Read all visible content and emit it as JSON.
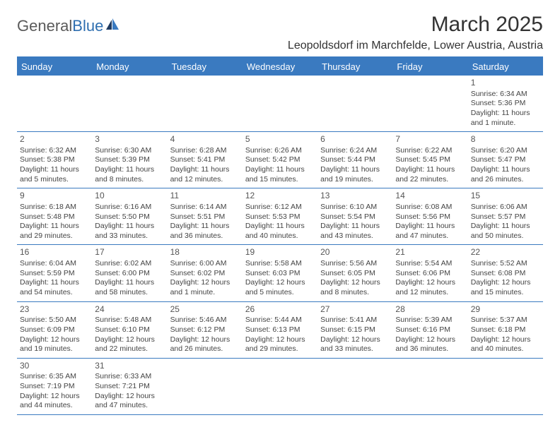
{
  "logo": {
    "part1": "General",
    "part2": "Blue"
  },
  "title": "March 2025",
  "location": "Leopoldsdorf im Marchfelde, Lower Austria, Austria",
  "colors": {
    "header_bg": "#3a7ac0",
    "header_text": "#ffffff",
    "rule": "#3a7ac0",
    "text": "#444444",
    "logo_gray": "#5a5a5a",
    "logo_blue": "#2f6fb0"
  },
  "weekdays": [
    "Sunday",
    "Monday",
    "Tuesday",
    "Wednesday",
    "Thursday",
    "Friday",
    "Saturday"
  ],
  "weeks": [
    [
      null,
      null,
      null,
      null,
      null,
      null,
      {
        "n": "1",
        "sr": "Sunrise: 6:34 AM",
        "ss": "Sunset: 5:36 PM",
        "dl": "Daylight: 11 hours and 1 minute."
      }
    ],
    [
      {
        "n": "2",
        "sr": "Sunrise: 6:32 AM",
        "ss": "Sunset: 5:38 PM",
        "dl": "Daylight: 11 hours and 5 minutes."
      },
      {
        "n": "3",
        "sr": "Sunrise: 6:30 AM",
        "ss": "Sunset: 5:39 PM",
        "dl": "Daylight: 11 hours and 8 minutes."
      },
      {
        "n": "4",
        "sr": "Sunrise: 6:28 AM",
        "ss": "Sunset: 5:41 PM",
        "dl": "Daylight: 11 hours and 12 minutes."
      },
      {
        "n": "5",
        "sr": "Sunrise: 6:26 AM",
        "ss": "Sunset: 5:42 PM",
        "dl": "Daylight: 11 hours and 15 minutes."
      },
      {
        "n": "6",
        "sr": "Sunrise: 6:24 AM",
        "ss": "Sunset: 5:44 PM",
        "dl": "Daylight: 11 hours and 19 minutes."
      },
      {
        "n": "7",
        "sr": "Sunrise: 6:22 AM",
        "ss": "Sunset: 5:45 PM",
        "dl": "Daylight: 11 hours and 22 minutes."
      },
      {
        "n": "8",
        "sr": "Sunrise: 6:20 AM",
        "ss": "Sunset: 5:47 PM",
        "dl": "Daylight: 11 hours and 26 minutes."
      }
    ],
    [
      {
        "n": "9",
        "sr": "Sunrise: 6:18 AM",
        "ss": "Sunset: 5:48 PM",
        "dl": "Daylight: 11 hours and 29 minutes."
      },
      {
        "n": "10",
        "sr": "Sunrise: 6:16 AM",
        "ss": "Sunset: 5:50 PM",
        "dl": "Daylight: 11 hours and 33 minutes."
      },
      {
        "n": "11",
        "sr": "Sunrise: 6:14 AM",
        "ss": "Sunset: 5:51 PM",
        "dl": "Daylight: 11 hours and 36 minutes."
      },
      {
        "n": "12",
        "sr": "Sunrise: 6:12 AM",
        "ss": "Sunset: 5:53 PM",
        "dl": "Daylight: 11 hours and 40 minutes."
      },
      {
        "n": "13",
        "sr": "Sunrise: 6:10 AM",
        "ss": "Sunset: 5:54 PM",
        "dl": "Daylight: 11 hours and 43 minutes."
      },
      {
        "n": "14",
        "sr": "Sunrise: 6:08 AM",
        "ss": "Sunset: 5:56 PM",
        "dl": "Daylight: 11 hours and 47 minutes."
      },
      {
        "n": "15",
        "sr": "Sunrise: 6:06 AM",
        "ss": "Sunset: 5:57 PM",
        "dl": "Daylight: 11 hours and 50 minutes."
      }
    ],
    [
      {
        "n": "16",
        "sr": "Sunrise: 6:04 AM",
        "ss": "Sunset: 5:59 PM",
        "dl": "Daylight: 11 hours and 54 minutes."
      },
      {
        "n": "17",
        "sr": "Sunrise: 6:02 AM",
        "ss": "Sunset: 6:00 PM",
        "dl": "Daylight: 11 hours and 58 minutes."
      },
      {
        "n": "18",
        "sr": "Sunrise: 6:00 AM",
        "ss": "Sunset: 6:02 PM",
        "dl": "Daylight: 12 hours and 1 minute."
      },
      {
        "n": "19",
        "sr": "Sunrise: 5:58 AM",
        "ss": "Sunset: 6:03 PM",
        "dl": "Daylight: 12 hours and 5 minutes."
      },
      {
        "n": "20",
        "sr": "Sunrise: 5:56 AM",
        "ss": "Sunset: 6:05 PM",
        "dl": "Daylight: 12 hours and 8 minutes."
      },
      {
        "n": "21",
        "sr": "Sunrise: 5:54 AM",
        "ss": "Sunset: 6:06 PM",
        "dl": "Daylight: 12 hours and 12 minutes."
      },
      {
        "n": "22",
        "sr": "Sunrise: 5:52 AM",
        "ss": "Sunset: 6:08 PM",
        "dl": "Daylight: 12 hours and 15 minutes."
      }
    ],
    [
      {
        "n": "23",
        "sr": "Sunrise: 5:50 AM",
        "ss": "Sunset: 6:09 PM",
        "dl": "Daylight: 12 hours and 19 minutes."
      },
      {
        "n": "24",
        "sr": "Sunrise: 5:48 AM",
        "ss": "Sunset: 6:10 PM",
        "dl": "Daylight: 12 hours and 22 minutes."
      },
      {
        "n": "25",
        "sr": "Sunrise: 5:46 AM",
        "ss": "Sunset: 6:12 PM",
        "dl": "Daylight: 12 hours and 26 minutes."
      },
      {
        "n": "26",
        "sr": "Sunrise: 5:44 AM",
        "ss": "Sunset: 6:13 PM",
        "dl": "Daylight: 12 hours and 29 minutes."
      },
      {
        "n": "27",
        "sr": "Sunrise: 5:41 AM",
        "ss": "Sunset: 6:15 PM",
        "dl": "Daylight: 12 hours and 33 minutes."
      },
      {
        "n": "28",
        "sr": "Sunrise: 5:39 AM",
        "ss": "Sunset: 6:16 PM",
        "dl": "Daylight: 12 hours and 36 minutes."
      },
      {
        "n": "29",
        "sr": "Sunrise: 5:37 AM",
        "ss": "Sunset: 6:18 PM",
        "dl": "Daylight: 12 hours and 40 minutes."
      }
    ],
    [
      {
        "n": "30",
        "sr": "Sunrise: 6:35 AM",
        "ss": "Sunset: 7:19 PM",
        "dl": "Daylight: 12 hours and 44 minutes."
      },
      {
        "n": "31",
        "sr": "Sunrise: 6:33 AM",
        "ss": "Sunset: 7:21 PM",
        "dl": "Daylight: 12 hours and 47 minutes."
      },
      null,
      null,
      null,
      null,
      null
    ]
  ]
}
